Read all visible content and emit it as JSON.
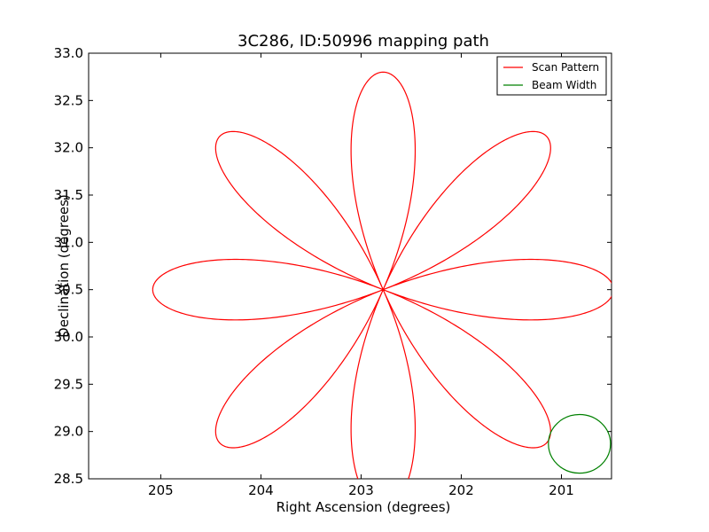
{
  "chart_data": {
    "type": "line",
    "title": "3C286, ID:50996 mapping path",
    "xlabel": "Right Ascension (degrees)",
    "ylabel": "Declination (degrees)",
    "xlim": [
      205.72,
      200.5
    ],
    "ylim": [
      28.5,
      33.0
    ],
    "x_inverted": true,
    "grid": false,
    "legend_position": "top-right",
    "x_ticks": [
      {
        "value": 205,
        "label": "205"
      },
      {
        "value": 204,
        "label": "204"
      },
      {
        "value": 203,
        "label": "203"
      },
      {
        "value": 202,
        "label": "202"
      },
      {
        "value": 201,
        "label": "201"
      }
    ],
    "y_ticks": [
      {
        "value": 28.5,
        "label": "28.5"
      },
      {
        "value": 29.0,
        "label": "29.0"
      },
      {
        "value": 29.5,
        "label": "29.5"
      },
      {
        "value": 30.0,
        "label": "30.0"
      },
      {
        "value": 30.5,
        "label": "30.5"
      },
      {
        "value": 31.0,
        "label": "31.0"
      },
      {
        "value": 31.5,
        "label": "31.5"
      },
      {
        "value": 32.0,
        "label": "32.0"
      },
      {
        "value": 32.5,
        "label": "32.5"
      },
      {
        "value": 33.0,
        "label": "33.0"
      }
    ],
    "series": [
      {
        "name": "Scan Pattern",
        "color": "#ff0000",
        "shape": "rose",
        "center": {
          "ra": 202.78,
          "dec": 30.5
        },
        "petals": 8,
        "petal_length_deg": 2.3
      },
      {
        "name": "Beam Width",
        "color": "#008000",
        "shape": "circle",
        "center": {
          "ra": 200.82,
          "dec": 28.87
        },
        "radius_deg": 0.31
      }
    ]
  }
}
